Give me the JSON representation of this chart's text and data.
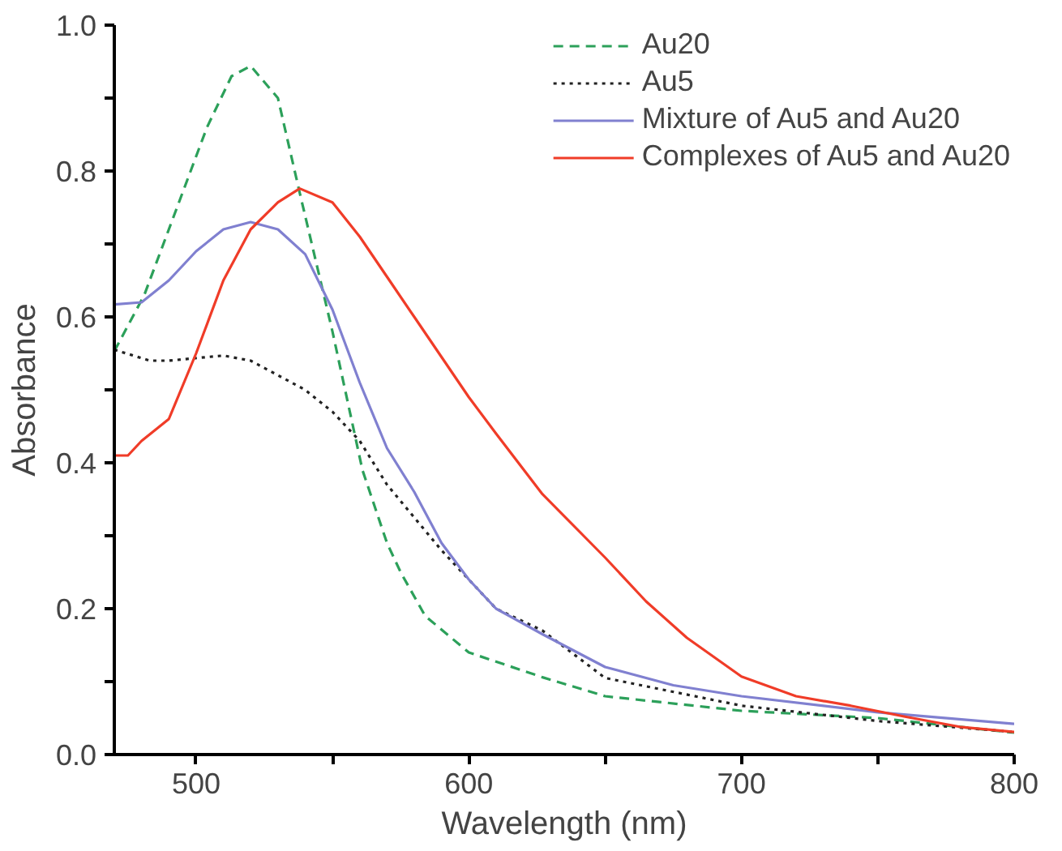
{
  "chart_data": {
    "type": "line",
    "xlabel": "Wavelength (nm)",
    "ylabel": "Absorbance",
    "xlim": [
      470,
      800
    ],
    "ylim": [
      0,
      1
    ],
    "xticks": [
      500,
      {
        "value": 550,
        "label": null
      },
      600,
      {
        "value": 650,
        "label": null
      },
      700,
      {
        "value": 750,
        "label": null
      },
      800
    ],
    "yticks": [
      "0.0",
      {
        "value": 0.1,
        "label": null
      },
      0.2,
      {
        "value": 0.3,
        "label": null
      },
      0.4,
      {
        "value": 0.5,
        "label": null
      },
      0.6,
      {
        "value": 0.7,
        "label": null
      },
      0.8,
      {
        "value": 0.9,
        "label": null
      },
      "1.0"
    ],
    "grid": false,
    "legend": "top right",
    "marker": "none",
    "series": [
      {
        "name": "Au20",
        "color": "#2ca05a",
        "line_style": "dashed",
        "x": [
          470,
          481,
          492,
          504,
          513,
          520,
          530,
          538,
          550,
          561,
          570,
          575,
          584,
          600,
          627,
          650,
          700,
          750,
          800
        ],
        "values": [
          0.553,
          0.63,
          0.74,
          0.86,
          0.93,
          0.944,
          0.9,
          0.77,
          0.58,
          0.39,
          0.29,
          0.25,
          0.19,
          0.14,
          0.106,
          0.08,
          0.06,
          0.05,
          0.03
        ]
      },
      {
        "name": "Au5",
        "color": "#222222",
        "line_style": "dotted",
        "x": [
          470,
          483,
          490,
          510,
          520,
          530,
          540,
          550,
          560,
          570,
          580,
          590,
          600,
          610,
          627,
          650,
          700,
          750,
          800
        ],
        "values": [
          0.555,
          0.54,
          0.54,
          0.547,
          0.54,
          0.52,
          0.5,
          0.47,
          0.43,
          0.37,
          0.325,
          0.28,
          0.24,
          0.2,
          0.17,
          0.105,
          0.067,
          0.046,
          0.031
        ]
      },
      {
        "name": "Mixture of Au5 and Au20",
        "color": "#8080d0",
        "line_style": "solid",
        "x": [
          470,
          480,
          490,
          500,
          510,
          520,
          530,
          540,
          550,
          560,
          570,
          580,
          590,
          600,
          610,
          627,
          650,
          675,
          700,
          750,
          800
        ],
        "values": [
          0.617,
          0.62,
          0.65,
          0.69,
          0.72,
          0.73,
          0.72,
          0.686,
          0.61,
          0.51,
          0.42,
          0.36,
          0.29,
          0.24,
          0.2,
          0.165,
          0.12,
          0.095,
          0.08,
          0.058,
          0.042
        ]
      },
      {
        "name": "Complexes of Au5 and Au20",
        "color": "#f03c28",
        "line_style": "solid",
        "x": [
          470,
          475,
          480,
          490,
          500,
          510,
          520,
          530,
          538,
          550,
          560,
          570,
          580,
          590,
          600,
          610,
          627,
          650,
          665,
          680,
          700,
          720,
          740,
          760,
          780,
          800
        ],
        "values": [
          0.41,
          0.41,
          0.43,
          0.46,
          0.55,
          0.65,
          0.72,
          0.757,
          0.776,
          0.757,
          0.71,
          0.655,
          0.6,
          0.545,
          0.49,
          0.44,
          0.357,
          0.27,
          0.21,
          0.16,
          0.107,
          0.08,
          0.067,
          0.052,
          0.038,
          0.031
        ]
      }
    ]
  }
}
